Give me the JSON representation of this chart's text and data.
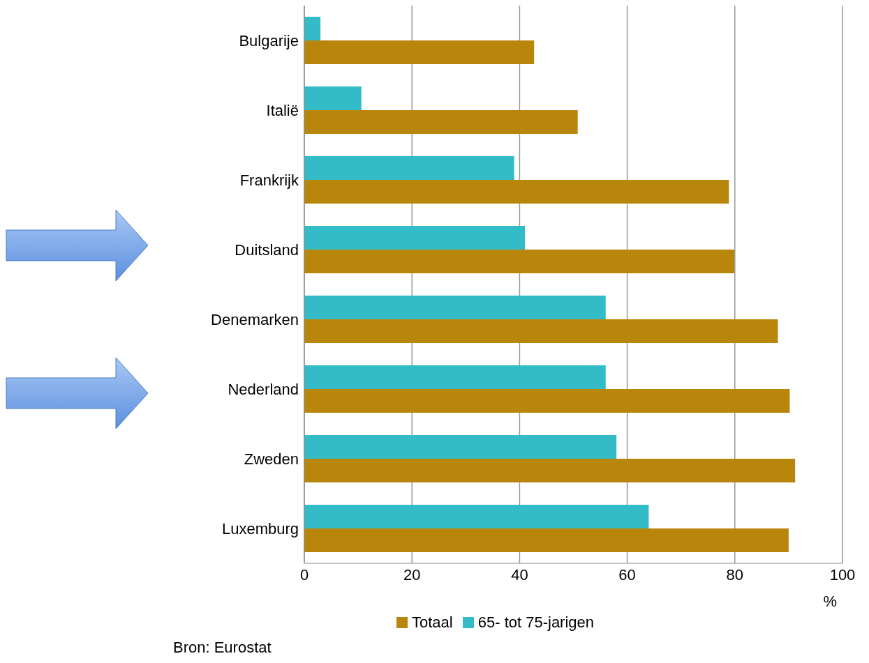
{
  "chart_data": {
    "type": "bar",
    "orientation": "horizontal",
    "xlabel": "%",
    "categories": [
      "Bulgarije",
      "Italië",
      "Frankrijk",
      "Duitsland",
      "Denemarken",
      "Nederland",
      "Zweden",
      "Luxemburg"
    ],
    "series": [
      {
        "name": "Totaal",
        "color": "#b8860b",
        "values": [
          42.7,
          50.8,
          78.9,
          79.9,
          88,
          90.2,
          91.2,
          90
        ]
      },
      {
        "name": "65- tot 75-jarigen",
        "color": "#33bbc8",
        "values": [
          3,
          10.6,
          39,
          41,
          56,
          56,
          58,
          64
        ]
      }
    ],
    "xlim": [
      0,
      100
    ],
    "xticks": [
      0,
      20,
      40,
      60,
      80,
      100
    ],
    "grid": "x",
    "legend": "bottom",
    "annotations": [
      "Bron: Eurostat"
    ]
  }
}
